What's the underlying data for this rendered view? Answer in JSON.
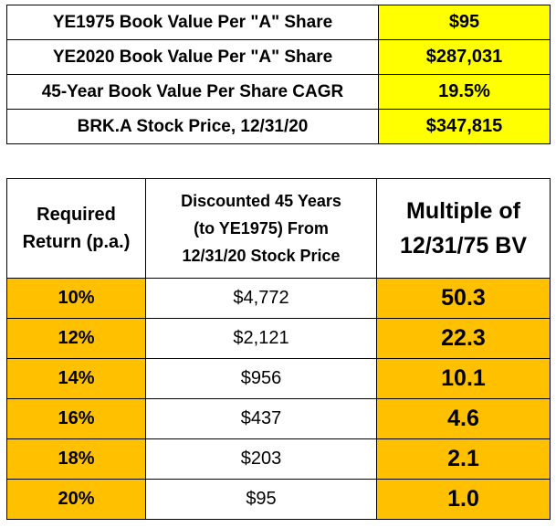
{
  "summary": [
    {
      "label": "YE1975 Book Value Per \"A\" Share",
      "value": "$95"
    },
    {
      "label": "YE2020 Book Value Per \"A\" Share",
      "value": "$287,031"
    },
    {
      "label": "45-Year Book Value Per Share CAGR",
      "value": "19.5%"
    },
    {
      "label": "BRK.A Stock Price, 12/31/20",
      "value": "$347,815"
    }
  ],
  "returns_table": {
    "headers": {
      "col1": [
        "Required",
        "Return (p.a.)"
      ],
      "col2": [
        "Discounted 45 Years",
        "(to YE1975) From",
        "12/31/20 Stock Price"
      ],
      "col3": [
        "Multiple of",
        "12/31/75 BV"
      ]
    },
    "rows": [
      {
        "rate": "10%",
        "discounted": "$4,772",
        "multiple": "50.3"
      },
      {
        "rate": "12%",
        "discounted": "$2,121",
        "multiple": "22.3"
      },
      {
        "rate": "14%",
        "discounted": "$956",
        "multiple": "10.1"
      },
      {
        "rate": "16%",
        "discounted": "$437",
        "multiple": "4.6"
      },
      {
        "rate": "18%",
        "discounted": "$203",
        "multiple": "2.1"
      },
      {
        "rate": "20%",
        "discounted": "$95",
        "multiple": "1.0"
      }
    ]
  },
  "colors": {
    "yellow_highlight": "#ffff00",
    "orange_highlight": "#ffc000"
  }
}
